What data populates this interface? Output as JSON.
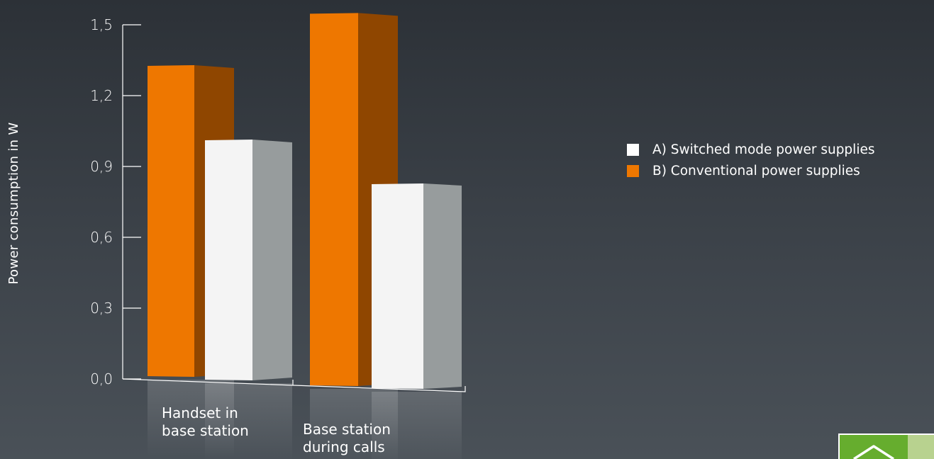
{
  "chart_data": {
    "type": "bar",
    "title": "",
    "ylabel": "Power consumption in W",
    "xlabel": "",
    "ylim": [
      0,
      1.5
    ],
    "y_ticks": [
      "0,0",
      "0,3",
      "0,6",
      "0,9",
      "1,2",
      "1,5"
    ],
    "y_tick_values": [
      0,
      0.3,
      0.6,
      0.9,
      1.2,
      1.5
    ],
    "categories": [
      [
        "Handset in",
        "base station"
      ],
      [
        "Base station",
        "during calls"
      ]
    ],
    "series": [
      {
        "name": "B) Conventional power supplies",
        "color": "#ee7700",
        "values": [
          1.32,
          1.58
        ]
      },
      {
        "name": "A) Switched mode power supplies",
        "color": "#f4f4f4",
        "values": [
          1.02,
          0.87
        ]
      }
    ],
    "legend_position": "right",
    "grid": false
  },
  "legend": [
    {
      "label": "A) Switched mode power supplies",
      "color": "#ffffff"
    },
    {
      "label": "B) Conventional power supplies",
      "color": "#ee7700"
    }
  ],
  "nav": {
    "home_icon": "home-icon"
  }
}
